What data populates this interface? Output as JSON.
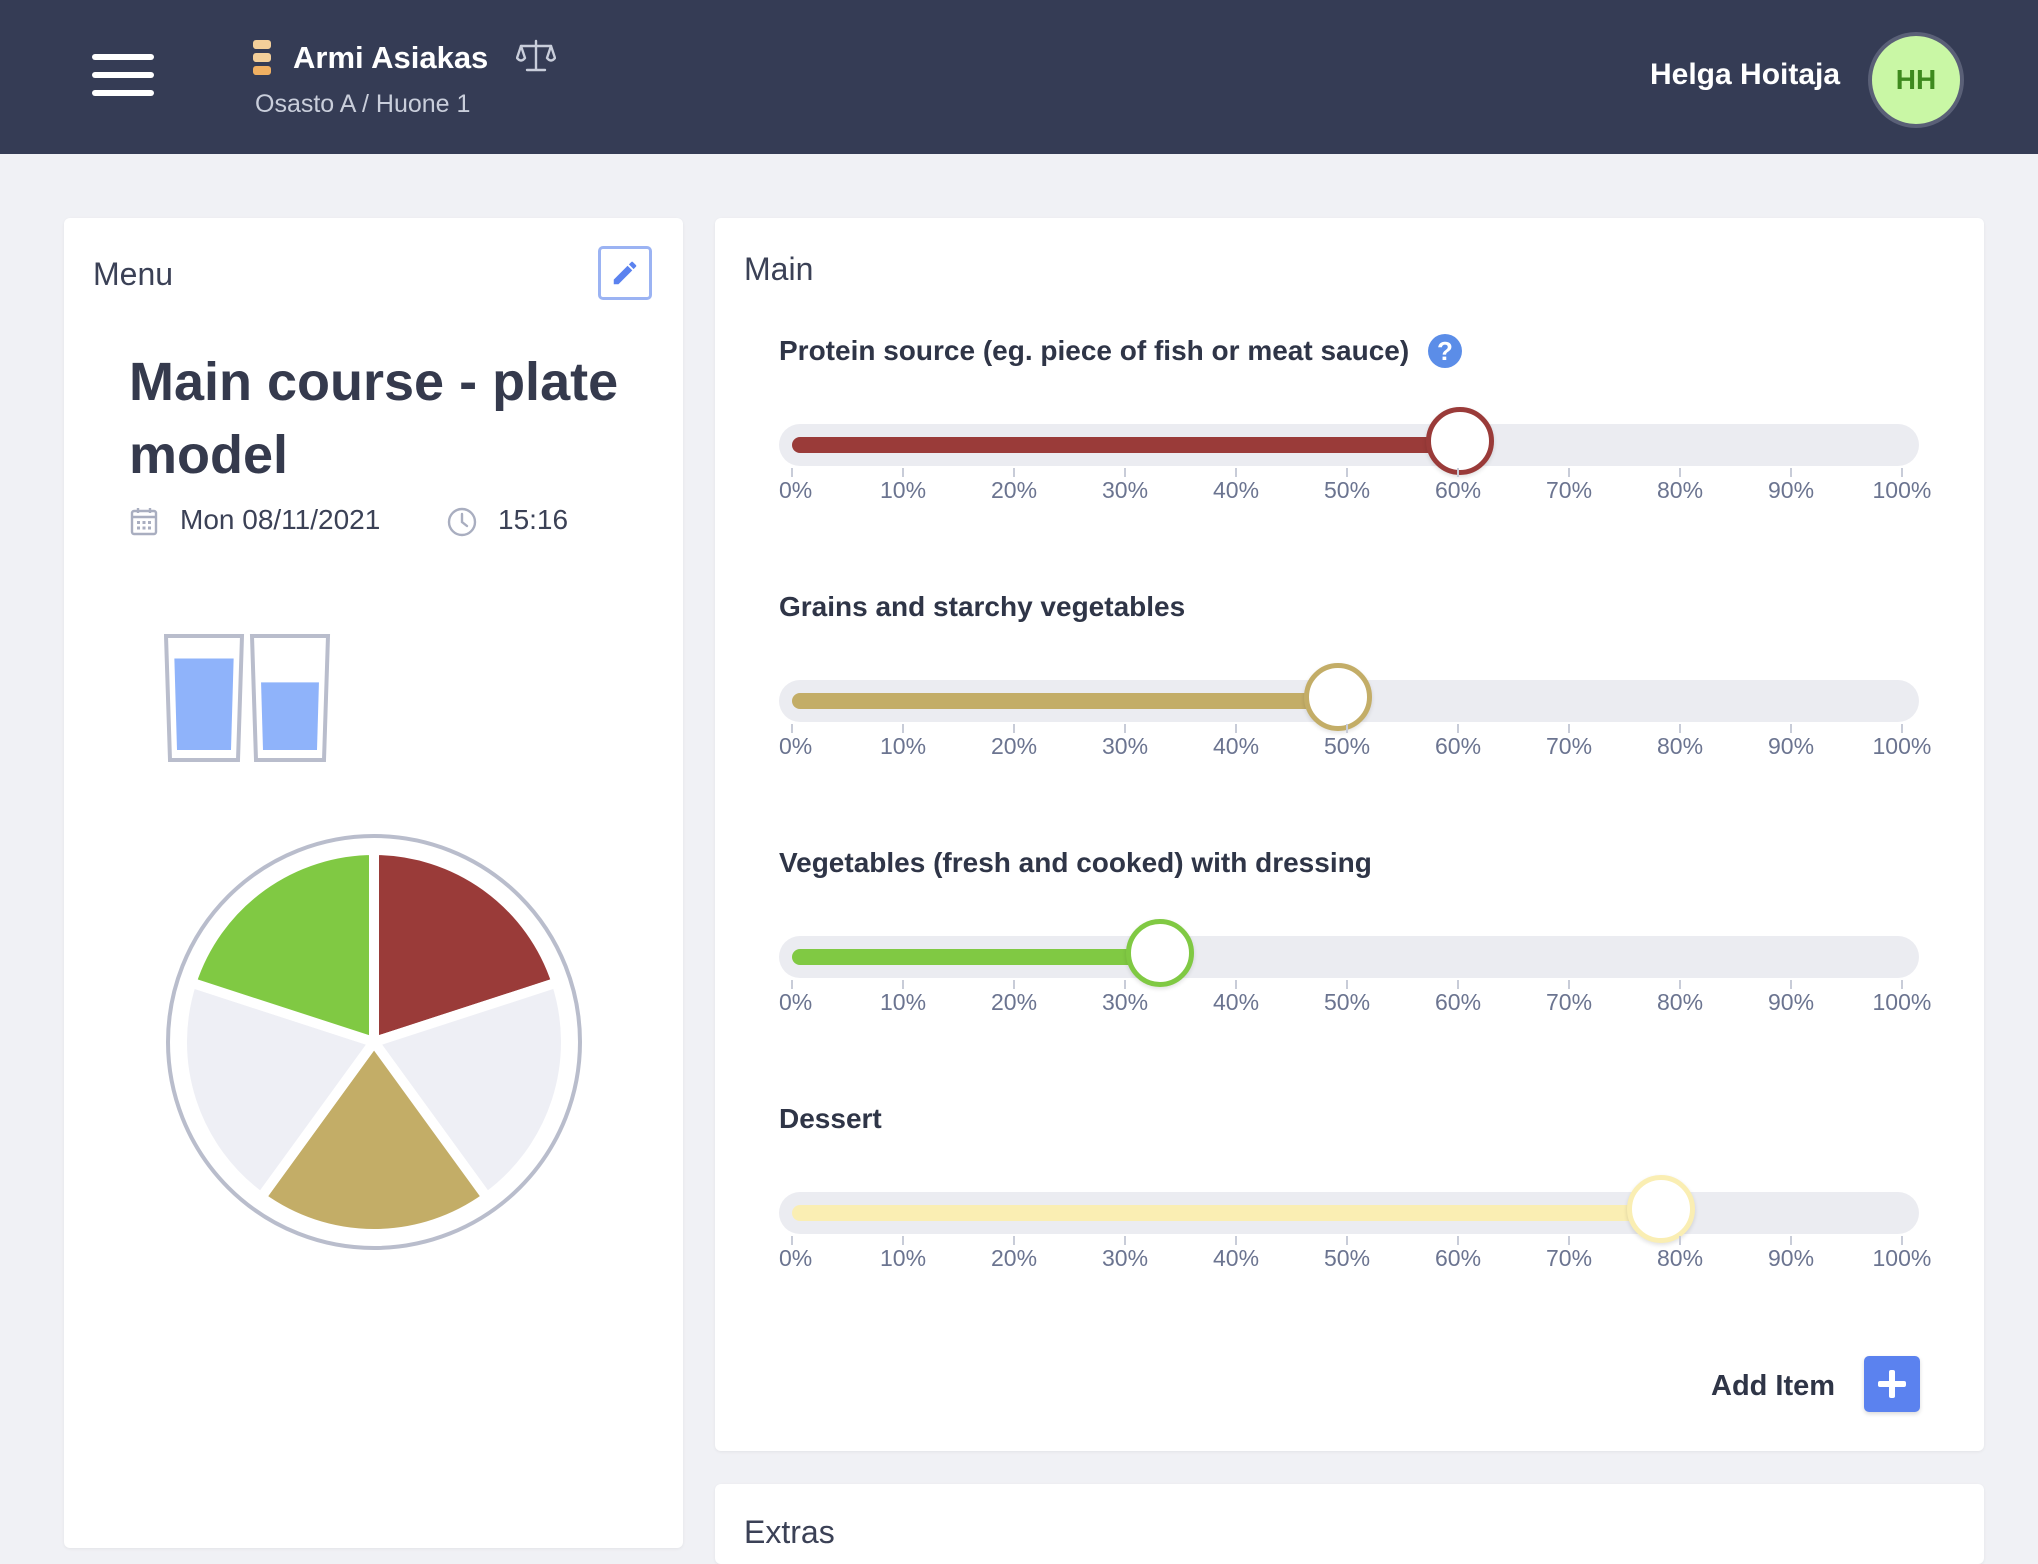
{
  "header": {
    "client_name": "Armi Asiakas",
    "client_location": "Osasto A / Huone 1",
    "user_name": "Helga Hoitaja",
    "user_initials": "HH",
    "status_colors": [
      "#f3cf9a",
      "#f3cf9a",
      "#f0b062"
    ],
    "icons": [
      "menu-icon",
      "status-icon",
      "scale-icon"
    ]
  },
  "menu_card": {
    "title": "Menu",
    "course_title": "Main course - plate model",
    "date": "Mon 08/11/2021",
    "time": "15:16",
    "glasses": [
      {
        "fill": 0.88
      },
      {
        "fill": 0.65
      }
    ],
    "water_color": "#8fb3fa"
  },
  "main_card": {
    "title": "Main",
    "sliders": [
      {
        "label": "Protein source (eg. piece of fish or meat sauce)",
        "value": 0.6,
        "color": "#9a3b39",
        "help": true
      },
      {
        "label": "Grains and starchy vegetables",
        "value": 0.49,
        "color": "#c3ad67",
        "help": false
      },
      {
        "label": "Vegetables (fresh and cooked) with dressing",
        "value": 0.33,
        "color": "#80c943",
        "help": false
      },
      {
        "label": "Dessert",
        "value": 0.78,
        "color": "#faeeb3",
        "help": false
      }
    ],
    "tick_labels": [
      "0%",
      "10%",
      "20%",
      "30%",
      "40%",
      "50%",
      "60%",
      "70%",
      "80%",
      "90%",
      "100%"
    ],
    "help_symbol": "?",
    "add_item_label": "Add Item"
  },
  "extras_card": {
    "title": "Extras"
  },
  "plate": {
    "empty_color": "#eeeff5",
    "rim_color": "#b9bdcc",
    "slices": [
      {
        "color": "#9a3b39",
        "value": 0.2
      },
      {
        "color": "#eeeff5",
        "value": 0.2
      },
      {
        "color": "#c3ad67",
        "value": 0.2
      },
      {
        "color": "#eeeff5",
        "value": 0.2
      },
      {
        "color": "#80c943",
        "value": 0.2
      }
    ]
  }
}
